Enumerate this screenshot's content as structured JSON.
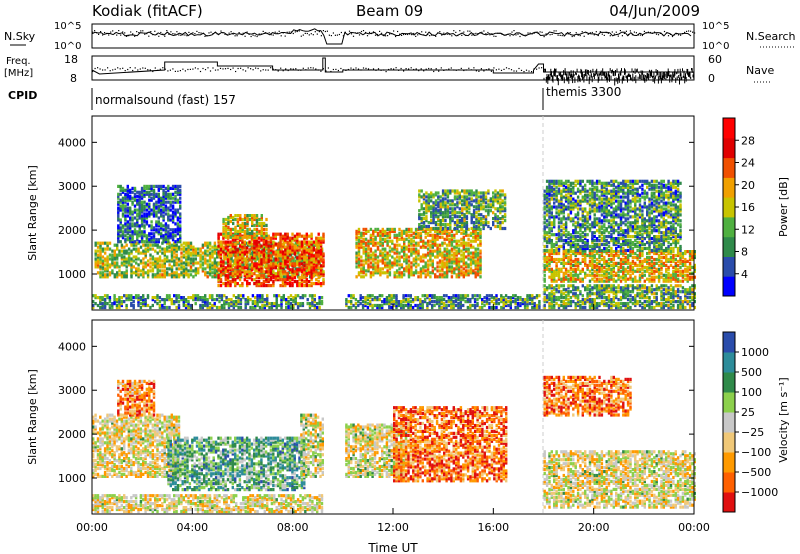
{
  "header": {
    "station": "Kodiak (fitACF)",
    "beam": "Beam 09",
    "date": "04/Jun/2009"
  },
  "top_panels": {
    "nsky_label": "N.Sky",
    "nsearch_label": "N.Search",
    "nsky_ticks": [
      "10^5",
      "10^0"
    ],
    "nsearch_ticks": [
      "10^5",
      "10^0"
    ],
    "freq_label_1": "Freq.",
    "freq_label_2": "[MHz]",
    "freq_ticks": [
      "18",
      "8"
    ],
    "nave_label": "Nave",
    "nave_ticks": [
      "60",
      "0"
    ],
    "cpid_label": "CPID",
    "cpid_modes": [
      {
        "name": "normalsound (fast) 157",
        "start_hour": 0
      },
      {
        "name": "themis 3300",
        "start_hour": 18
      }
    ]
  },
  "colors": {
    "power": [
      "#0000ff",
      "#2a4cab",
      "#2f8a4a",
      "#4fb040",
      "#c8c400",
      "#f0a000",
      "#f05000",
      "#e00000",
      "#ff0000"
    ],
    "velocity": [
      "#e01010",
      "#ff6000",
      "#ff9a00",
      "#f0c878",
      "#c8c8c8",
      "#8cd04c",
      "#2f8a4a",
      "#2d8c9a",
      "#2a4cab"
    ]
  },
  "chart_data": [
    {
      "type": "heatmap",
      "title": "",
      "ylabel": "Slant Range [km]",
      "xlabel": "",
      "x_range_hours": [
        0,
        24
      ],
      "ylim": [
        180,
        4600
      ],
      "yticks": [
        "1000",
        "2000",
        "3000",
        "4000"
      ],
      "xticks": [
        "00:00",
        "04:00",
        "08:00",
        "12:00",
        "16:00",
        "20:00",
        "00:00"
      ],
      "colorbar": {
        "label": "Power [dB]",
        "ticks": [
          "4",
          "8",
          "12",
          "16",
          "20",
          "24",
          "28"
        ],
        "range": [
          0,
          30
        ]
      },
      "gaps_hours": [
        [
          9.3,
          10.0
        ]
      ],
      "regions": [
        {
          "t0": 0.0,
          "t1": 9.2,
          "r0": 200,
          "r1": 500,
          "level": 0.3
        },
        {
          "t0": 0.1,
          "t1": 9.2,
          "r0": 900,
          "r1": 1700,
          "level": 0.45
        },
        {
          "t0": 1.0,
          "t1": 3.5,
          "r0": 1700,
          "r1": 3000,
          "level": 0.2
        },
        {
          "t0": 5.0,
          "t1": 9.2,
          "r0": 700,
          "r1": 1900,
          "level": 0.75
        },
        {
          "t0": 5.2,
          "t1": 7.0,
          "r0": 1800,
          "r1": 2300,
          "level": 0.5
        },
        {
          "t0": 10.0,
          "t1": 17.8,
          "r0": 200,
          "r1": 500,
          "level": 0.3
        },
        {
          "t0": 10.5,
          "t1": 15.5,
          "r0": 900,
          "r1": 2000,
          "level": 0.55
        },
        {
          "t0": 13.0,
          "t1": 16.5,
          "r0": 2000,
          "r1": 2900,
          "level": 0.35
        },
        {
          "t0": 18.0,
          "t1": 24.0,
          "r0": 200,
          "r1": 700,
          "level": 0.35
        },
        {
          "t0": 18.0,
          "t1": 24.0,
          "r0": 800,
          "r1": 1500,
          "level": 0.55
        },
        {
          "t0": 18.0,
          "t1": 23.5,
          "r0": 1500,
          "r1": 3100,
          "level": 0.3
        }
      ]
    },
    {
      "type": "heatmap",
      "title": "",
      "ylabel": "Slant Range [km]",
      "xlabel": "Time UT",
      "x_range_hours": [
        0,
        24
      ],
      "ylim": [
        180,
        4600
      ],
      "yticks": [
        "1000",
        "2000",
        "3000",
        "4000"
      ],
      "xticks": [
        "00:00",
        "04:00",
        "08:00",
        "12:00",
        "16:00",
        "20:00",
        "00:00"
      ],
      "colorbar": {
        "label": "Velocity [m s⁻¹]",
        "ticks": [
          "1000",
          "500",
          "100",
          "25",
          "−25",
          "−100",
          "−500",
          "−1000"
        ],
        "range": [
          -1000,
          1000
        ]
      },
      "gaps_hours": [
        [
          9.3,
          10.0
        ]
      ],
      "regions": [
        {
          "t0": 0.0,
          "t1": 9.2,
          "r0": 200,
          "r1": 600,
          "level": 0.45
        },
        {
          "t0": 0.0,
          "t1": 3.5,
          "r0": 1000,
          "r1": 2400,
          "level": 0.45
        },
        {
          "t0": 1.0,
          "t1": 2.5,
          "r0": 2400,
          "r1": 3200,
          "level": 0.25
        },
        {
          "t0": 3.0,
          "t1": 8.5,
          "r0": 700,
          "r1": 1900,
          "level": 0.7
        },
        {
          "t0": 8.3,
          "t1": 9.2,
          "r0": 1000,
          "r1": 2400,
          "level": 0.48
        },
        {
          "t0": 10.0,
          "t1": 12.5,
          "r0": 1000,
          "r1": 2200,
          "level": 0.48
        },
        {
          "t0": 12.0,
          "t1": 16.5,
          "r0": 900,
          "r1": 2600,
          "level": 0.2
        },
        {
          "t0": 18.0,
          "t1": 21.5,
          "r0": 2400,
          "r1": 3300,
          "level": 0.2
        },
        {
          "t0": 18.0,
          "t1": 24.0,
          "r0": 300,
          "r1": 1600,
          "level": 0.46
        }
      ]
    }
  ]
}
